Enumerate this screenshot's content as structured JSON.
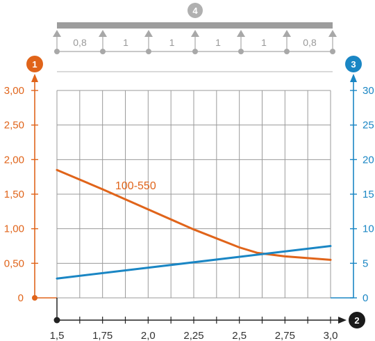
{
  "chart_data": {
    "type": "line",
    "x": [
      1.5,
      1.75,
      2.0,
      2.25,
      2.5,
      2.75,
      3.0
    ],
    "x_tick_labels": [
      "1,5",
      "1,75",
      "2,0",
      "2,25",
      "2,5",
      "2,75",
      "3,0"
    ],
    "xlim": [
      1.5,
      3.0
    ],
    "y_left": {
      "ylim": [
        0,
        3.0
      ],
      "ticks": [
        0,
        0.5,
        1.0,
        1.5,
        2.0,
        2.5,
        3.0
      ],
      "tick_labels": [
        "0",
        "0,50",
        "1,00",
        "1,50",
        "2,00",
        "2,50",
        "3,00"
      ],
      "color": "#e0641a"
    },
    "y_right": {
      "ylim": [
        0,
        30
      ],
      "ticks": [
        0,
        5,
        10,
        15,
        20,
        25,
        30
      ],
      "tick_labels": [
        "0",
        "5",
        "10",
        "15",
        "20",
        "25",
        "30"
      ],
      "color": "#1a86c4"
    },
    "series": [
      {
        "name": "100-550",
        "axis": "left",
        "color": "#e0641a",
        "x": [
          1.5,
          1.75,
          2.0,
          2.25,
          2.5,
          2.6,
          2.75,
          3.0
        ],
        "values": [
          1.85,
          1.57,
          1.28,
          0.99,
          0.73,
          0.65,
          0.6,
          0.55
        ]
      },
      {
        "name": "",
        "axis": "right",
        "color": "#1a86c4",
        "x": [
          1.5,
          3.0
        ],
        "values": [
          2.8,
          7.5
        ]
      }
    ],
    "grid": true,
    "badges": {
      "left_axis": "1",
      "x_axis": "2",
      "right_axis": "3",
      "support_diagram": "4"
    },
    "support_spans": [
      "0,8",
      "1",
      "1",
      "1",
      "1",
      "0,8"
    ]
  }
}
